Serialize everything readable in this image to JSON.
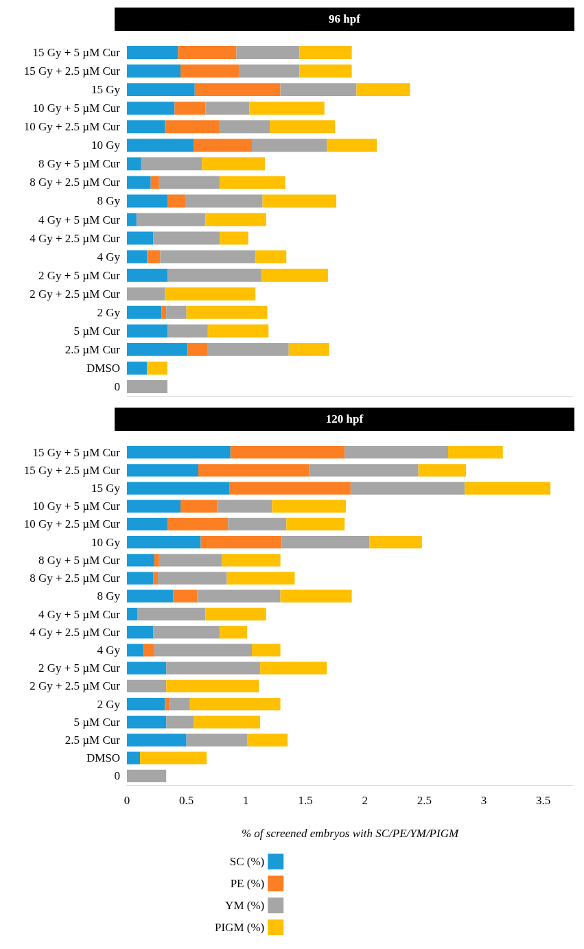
{
  "chart_data": [
    {
      "type": "bar",
      "title": "96 hpf",
      "orientation": "horizontal",
      "stacked": true,
      "legend": false,
      "grid": false,
      "tick_labels": "y",
      "xlim": [
        0,
        3.75
      ],
      "categories": [
        "15 Gy + 5 µM Cur",
        "15 Gy + 2.5 µM Cur",
        "15 Gy",
        "10 Gy + 5 µM Cur",
        "10 Gy + 2.5 µM Cur",
        "10 Gy",
        "8 Gy + 5 µM Cur",
        "8 Gy + 2.5 µM Cur",
        "8 Gy",
        "4 Gy + 5 µM Cur",
        "4 Gy + 2.5 µM Cur",
        "4 Gy",
        "2 Gy + 5 µM Cur",
        "2 Gy + 2.5 µM Cur",
        "2 Gy",
        "5 µM Cur",
        "2.5 µM Cur",
        "DMSO",
        "0"
      ],
      "xticks": [
        0,
        0.5,
        1,
        1.5,
        2,
        2.5,
        3,
        3.5
      ],
      "series": [
        {
          "color": "#1a9bd7",
          "values": [
            0.43,
            0.45,
            0.57,
            0.4,
            0.32,
            0.56,
            0.12,
            0.2,
            0.34,
            0.08,
            0.22,
            0.17,
            0.34,
            0,
            0.29,
            0.34,
            0.51,
            0.17,
            0
          ]
        },
        {
          "color": "#fd7f23",
          "values": [
            0.49,
            0.49,
            0.72,
            0.26,
            0.46,
            0.49,
            0,
            0.07,
            0.15,
            0,
            0,
            0.11,
            0,
            0,
            0.04,
            0,
            0.17,
            0,
            0
          ]
        },
        {
          "color": "#a6a6a6",
          "values": [
            0.53,
            0.51,
            0.64,
            0.37,
            0.42,
            0.63,
            0.51,
            0.51,
            0.65,
            0.58,
            0.56,
            0.8,
            0.79,
            0.32,
            0.17,
            0.34,
            0.68,
            0,
            0.34
          ]
        },
        {
          "color": "#ffc000",
          "values": [
            0.44,
            0.44,
            0.45,
            0.63,
            0.55,
            0.42,
            0.53,
            0.55,
            0.62,
            0.51,
            0.24,
            0.26,
            0.56,
            0.76,
            0.68,
            0.51,
            0.34,
            0.17,
            0
          ]
        }
      ]
    },
    {
      "type": "bar",
      "title": "120 hpf",
      "orientation": "horizontal",
      "stacked": true,
      "legend": "bottom",
      "grid": false,
      "xlabel": "% of screened embryos with SC/PE/YM/PIGM",
      "xlim": [
        0,
        3.75
      ],
      "categories": [
        "15 Gy + 5 µM Cur",
        "15 Gy + 2.5 µM Cur",
        "15 Gy",
        "10 Gy + 5 µM Cur",
        "10 Gy + 2.5 µM Cur",
        "10 Gy",
        "8 Gy + 5 µM Cur",
        "8 Gy + 2.5 µM Cur",
        "8 Gy",
        "4 Gy + 5 µM Cur",
        "4 Gy + 2.5 µM Cur",
        "4 Gy",
        "2 Gy + 5 µM Cur",
        "2 Gy + 2.5 µM Cur",
        "2 Gy",
        "5 µM Cur",
        "2.5 µM Cur",
        "DMSO",
        "0"
      ],
      "xticks": [
        0,
        0.5,
        1,
        1.5,
        2,
        2.5,
        3,
        3.5
      ],
      "series": [
        {
          "name": "SC (%)",
          "color": "#1a9bd7",
          "values": [
            0.87,
            0.6,
            0.86,
            0.45,
            0.34,
            0.62,
            0.23,
            0.22,
            0.39,
            0.09,
            0.22,
            0.14,
            0.33,
            0,
            0.32,
            0.33,
            0.5,
            0.11,
            0
          ]
        },
        {
          "name": "PE (%)",
          "color": "#fd7f23",
          "values": [
            0.96,
            0.93,
            1.02,
            0.31,
            0.51,
            0.68,
            0.04,
            0.04,
            0.2,
            0,
            0,
            0.09,
            0,
            0,
            0.04,
            0,
            0,
            0,
            0
          ]
        },
        {
          "name": "YM (%)",
          "color": "#a6a6a6",
          "values": [
            0.87,
            0.92,
            0.96,
            0.46,
            0.49,
            0.74,
            0.53,
            0.58,
            0.7,
            0.57,
            0.56,
            0.82,
            0.79,
            0.33,
            0.17,
            0.23,
            0.51,
            0,
            0.33
          ]
        },
        {
          "name": "PIGM (%)",
          "color": "#ffc000",
          "values": [
            0.46,
            0.4,
            0.72,
            0.62,
            0.49,
            0.44,
            0.49,
            0.57,
            0.6,
            0.51,
            0.23,
            0.24,
            0.56,
            0.78,
            0.76,
            0.56,
            0.34,
            0.56,
            0
          ]
        }
      ]
    }
  ]
}
